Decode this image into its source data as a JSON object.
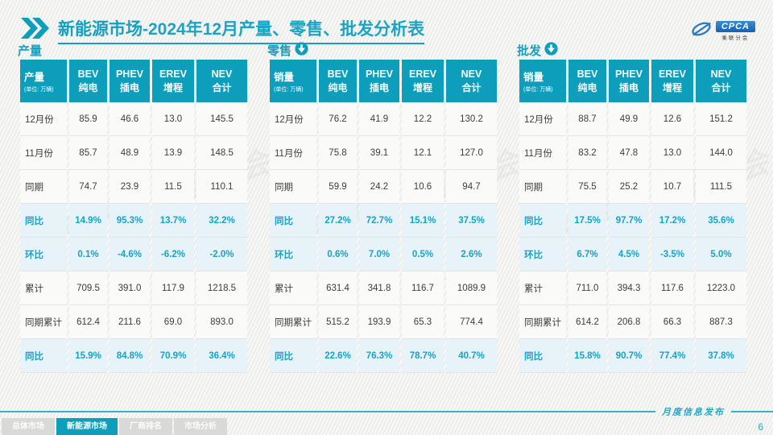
{
  "header": {
    "title_prefix": "新能源市场",
    "title_rest": "-2024年12月产量、零售、批发分析表",
    "logo": {
      "name": "CPCA",
      "subtitle": "乘联分会"
    }
  },
  "unit_note": "(单位: 万辆)",
  "columns": [
    {
      "en": "BEV",
      "zh": "纯电"
    },
    {
      "en": "PHEV",
      "zh": "插电"
    },
    {
      "en": "EREV",
      "zh": "增程"
    },
    {
      "en": "NEV",
      "zh": "合计"
    }
  ],
  "row_labels": [
    "12月份",
    "11月份",
    "同期",
    "同比",
    "环比",
    "累计",
    "同期累计",
    "同比"
  ],
  "highlight_rows": [
    3,
    4,
    7
  ],
  "tables": [
    {
      "section": "产量",
      "unit_label": "产量",
      "arrow": false,
      "rows": [
        [
          "85.9",
          "46.6",
          "13.0",
          "145.5"
        ],
        [
          "85.7",
          "48.9",
          "13.9",
          "148.5"
        ],
        [
          "74.7",
          "23.9",
          "11.5",
          "110.1"
        ],
        [
          "14.9%",
          "95.3%",
          "13.7%",
          "32.2%"
        ],
        [
          "0.1%",
          "-4.6%",
          "-6.2%",
          "-2.0%"
        ],
        [
          "709.5",
          "391.0",
          "117.9",
          "1218.5"
        ],
        [
          "612.4",
          "211.6",
          "69.0",
          "893.0"
        ],
        [
          "15.9%",
          "84.8%",
          "70.9%",
          "36.4%"
        ]
      ]
    },
    {
      "section": "零售",
      "unit_label": "销量",
      "arrow": true,
      "rows": [
        [
          "76.2",
          "41.9",
          "12.2",
          "130.2"
        ],
        [
          "75.8",
          "39.1",
          "12.1",
          "127.0"
        ],
        [
          "59.9",
          "24.2",
          "10.6",
          "94.7"
        ],
        [
          "27.2%",
          "72.7%",
          "15.1%",
          "37.5%"
        ],
        [
          "0.6%",
          "7.0%",
          "0.5%",
          "2.6%"
        ],
        [
          "631.4",
          "341.8",
          "116.7",
          "1089.9"
        ],
        [
          "515.2",
          "193.9",
          "65.3",
          "774.4"
        ],
        [
          "22.6%",
          "76.3%",
          "78.7%",
          "40.7%"
        ]
      ]
    },
    {
      "section": "批发",
      "unit_label": "销量",
      "arrow": true,
      "rows": [
        [
          "88.7",
          "49.9",
          "12.6",
          "151.2"
        ],
        [
          "83.2",
          "47.8",
          "13.0",
          "144.0"
        ],
        [
          "75.5",
          "25.2",
          "10.7",
          "111.5"
        ],
        [
          "17.5%",
          "97.7%",
          "17.2%",
          "35.6%"
        ],
        [
          "6.7%",
          "4.5%",
          "-3.5%",
          "5.0%"
        ],
        [
          "711.0",
          "394.3",
          "117.6",
          "1223.0"
        ],
        [
          "614.2",
          "206.8",
          "66.3",
          "887.3"
        ],
        [
          "15.8%",
          "90.7%",
          "77.4%",
          "37.8%"
        ]
      ]
    }
  ],
  "watermark": "CPCA 乘联分会",
  "footer": {
    "tabs": [
      {
        "label": "总体市场",
        "active": false
      },
      {
        "label": "新能源市场",
        "active": true
      },
      {
        "label": "厂商排名",
        "active": false
      },
      {
        "label": "市场分析",
        "active": false
      }
    ],
    "publish_label": "月度信息发布",
    "page_number": "6"
  },
  "colors": {
    "accent_teal": "#0c9eba",
    "title_teal": "#16a0c0",
    "highlight_row_bg": "#e8f3f9",
    "highlight_row_text": "#18a3c5",
    "logo_blue": "#2b7bc4",
    "slide_bg": "#f2f2f0"
  }
}
